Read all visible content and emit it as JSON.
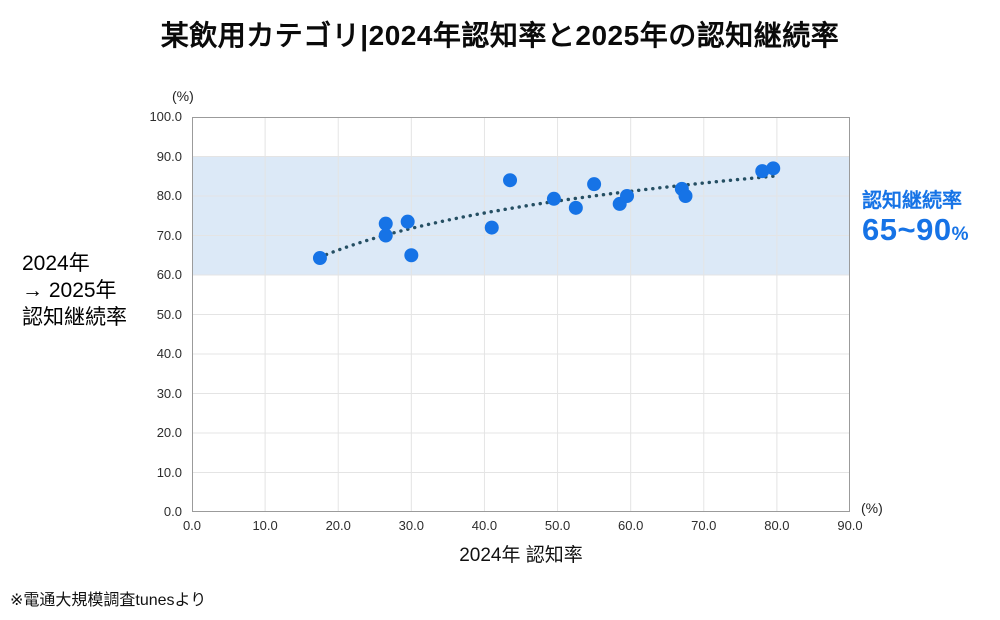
{
  "chart_data": {
    "type": "scatter",
    "title": "某飲用カテゴリ|2024年認知率と2025年の認知継続率",
    "xlabel": "2024年 認知率",
    "ylabel_lines": [
      "2024年",
      "→ 2025年",
      "認知継続率"
    ],
    "x_unit": "(%)",
    "y_unit": "(%)",
    "xlim": [
      0,
      90
    ],
    "ylim": [
      0,
      100
    ],
    "xticks": [
      0,
      10,
      20,
      30,
      40,
      50,
      60,
      70,
      80,
      90
    ],
    "yticks": [
      0,
      10,
      20,
      30,
      40,
      50,
      60,
      70,
      80,
      90,
      100
    ],
    "grid": true,
    "band": {
      "from": 60,
      "to": 90,
      "color": "#dce9f7"
    },
    "points": [
      [
        17.5,
        64.3
      ],
      [
        26.5,
        73.0
      ],
      [
        26.5,
        70.0
      ],
      [
        29.5,
        73.5
      ],
      [
        30.0,
        65.0
      ],
      [
        41.0,
        72.0
      ],
      [
        43.5,
        84.0
      ],
      [
        49.5,
        79.3
      ],
      [
        52.5,
        77.0
      ],
      [
        55.0,
        83.0
      ],
      [
        58.5,
        78.0
      ],
      [
        59.5,
        80.0
      ],
      [
        67.0,
        81.8
      ],
      [
        67.5,
        80.0
      ],
      [
        78.0,
        86.3
      ],
      [
        79.5,
        87.0
      ]
    ],
    "point_color": "#1673e6",
    "trend": {
      "type": "log",
      "a": 25.72,
      "b": 13.55,
      "x_start": 17.5,
      "x_end": 79.5,
      "color": "#254f63"
    },
    "annotation": {
      "label": "認知継続率",
      "value": "65~90",
      "unit": "%",
      "color": "#1673e6"
    },
    "footnote": "※電通大規模調査tunesより",
    "colors": {
      "accent_blue": "#1673e6",
      "band_blue": "#dce9f7",
      "trend_dark": "#254f63",
      "gridline": "#e4e4e4",
      "axis_border": "#9b9b9b"
    }
  }
}
